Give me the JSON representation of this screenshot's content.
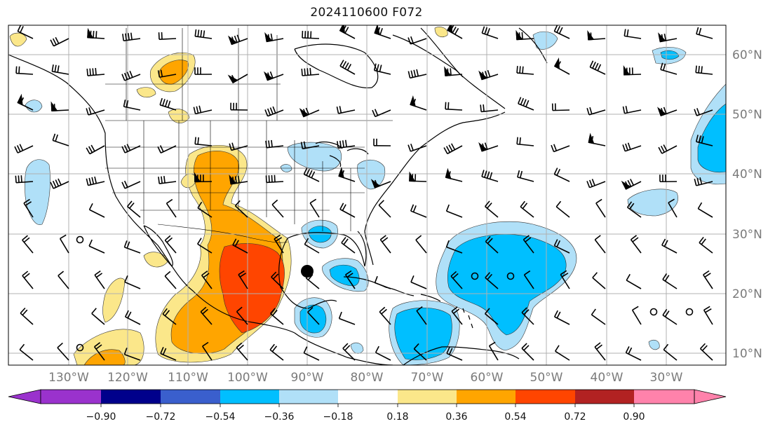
{
  "title": "2024110600 F072",
  "lon_labels": [
    "130°W",
    "120°W",
    "110°W",
    "100°W",
    "90°W",
    "80°W",
    "70°W",
    "60°W",
    "50°W",
    "40°W",
    "30°W"
  ],
  "lat_labels": [
    "60°N",
    "50°N",
    "40°N",
    "30°N",
    "20°N",
    "10°N"
  ],
  "colorbar": {
    "ticks": [
      "−0.90",
      "−0.72",
      "−0.54",
      "−0.36",
      "−0.18",
      "0.18",
      "0.36",
      "0.54",
      "0.72",
      "0.90"
    ],
    "colors": [
      "#9a32cd",
      "#00008b",
      "#3a5fcd",
      "#00bfff",
      "#b0e0f8",
      "#ffffff",
      "#fbe78a",
      "#ffa500",
      "#ff4500",
      "#b22222",
      "#ff82ab"
    ]
  },
  "colors": {
    "grid": "#b0b0b0",
    "coast": "#000000",
    "border": "#000000",
    "light_blue": "#b0e0f8",
    "blue": "#00bfff",
    "yellow": "#fbe78a",
    "orange": "#ffa500",
    "red_orange": "#ff4500"
  },
  "markers": [
    {
      "name": "storm-center-marker",
      "lon": -90,
      "lat": 24
    }
  ]
}
